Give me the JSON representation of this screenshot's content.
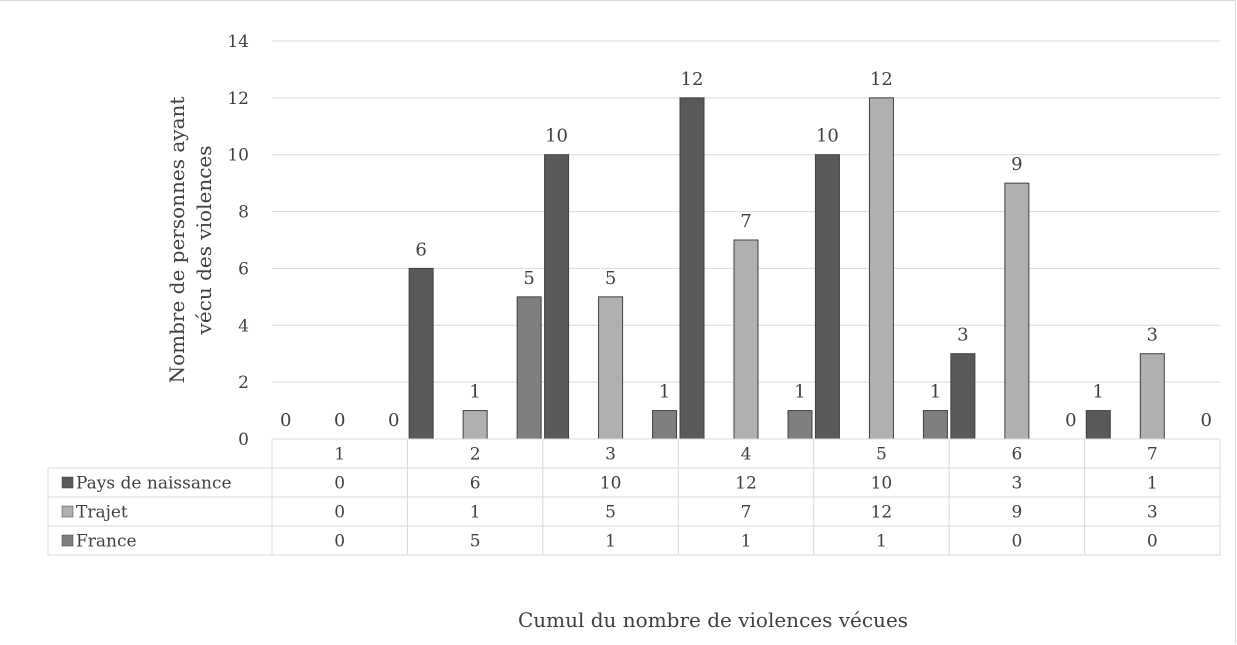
{
  "chart_data": {
    "type": "bar",
    "xlabel": "Cumul du nombre de violences vécues",
    "ylabel_lines": [
      "Nombre de personnes ayant",
      "vécu des violences"
    ],
    "categories": [
      "1",
      "2",
      "3",
      "4",
      "5",
      "6",
      "7"
    ],
    "ylim": [
      0,
      14
    ],
    "yticks": [
      0,
      2,
      4,
      6,
      8,
      10,
      12,
      14
    ],
    "grid": true,
    "legend": "data-table",
    "series": [
      {
        "name": "Pays de naissance",
        "color": "#595959",
        "values": [
          0,
          6,
          10,
          12,
          10,
          3,
          1
        ]
      },
      {
        "name": "Trajet",
        "color": "#b0b0b0",
        "values": [
          0,
          1,
          5,
          7,
          12,
          9,
          3
        ]
      },
      {
        "name": "France",
        "color": "#7f7f7f",
        "values": [
          0,
          5,
          1,
          1,
          1,
          0,
          0
        ]
      }
    ]
  }
}
